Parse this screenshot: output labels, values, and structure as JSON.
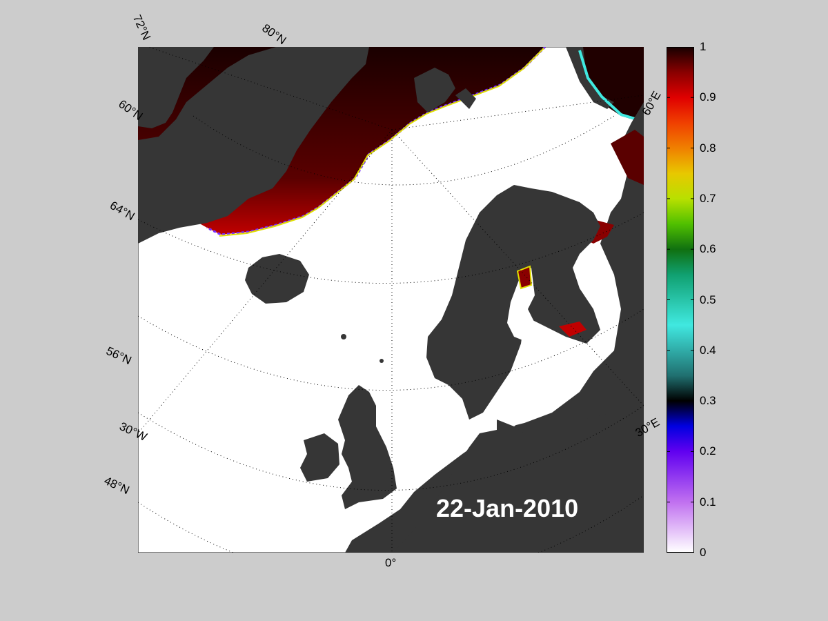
{
  "map": {
    "date": "22-Jan-2010",
    "labels": {
      "lat_72N": "72°N",
      "lat_80N": "80°N",
      "lat_60N_top": "60°N",
      "lat_64N": "64°N",
      "lat_56N": "56°N",
      "lon_30W": "30°W",
      "lat_48N": "48°N",
      "lon_0": "0°",
      "lon_60E": "60°E",
      "lon_30E": "30°E"
    },
    "colors": {
      "ocean_open": "#ffffff",
      "land": "#363636",
      "lake": "#808080",
      "ice_full": "#200000",
      "figure_background": "#cccccc"
    }
  },
  "colorbar": {
    "ticks": [
      "1",
      "0.9",
      "0.8",
      "0.7",
      "0.6",
      "0.5",
      "0.4",
      "0.3",
      "0.2",
      "0.1",
      "0"
    ],
    "range": [
      0,
      1
    ],
    "colormap_stops": [
      {
        "v": 1.0,
        "c": "#180000"
      },
      {
        "v": 0.95,
        "c": "#8a0000"
      },
      {
        "v": 0.9,
        "c": "#e00000"
      },
      {
        "v": 0.85,
        "c": "#f04000"
      },
      {
        "v": 0.8,
        "c": "#f08000"
      },
      {
        "v": 0.75,
        "c": "#e8c800"
      },
      {
        "v": 0.7,
        "c": "#b8e000"
      },
      {
        "v": 0.65,
        "c": "#50c000"
      },
      {
        "v": 0.6,
        "c": "#107010"
      },
      {
        "v": 0.55,
        "c": "#10a070"
      },
      {
        "v": 0.45,
        "c": "#40e8e0"
      },
      {
        "v": 0.35,
        "c": "#207070"
      },
      {
        "v": 0.3,
        "c": "#000000"
      },
      {
        "v": 0.25,
        "c": "#0000e0"
      },
      {
        "v": 0.2,
        "c": "#6000f0"
      },
      {
        "v": 0.1,
        "c": "#c070f0"
      },
      {
        "v": 0.0,
        "c": "#ffffff"
      }
    ]
  }
}
